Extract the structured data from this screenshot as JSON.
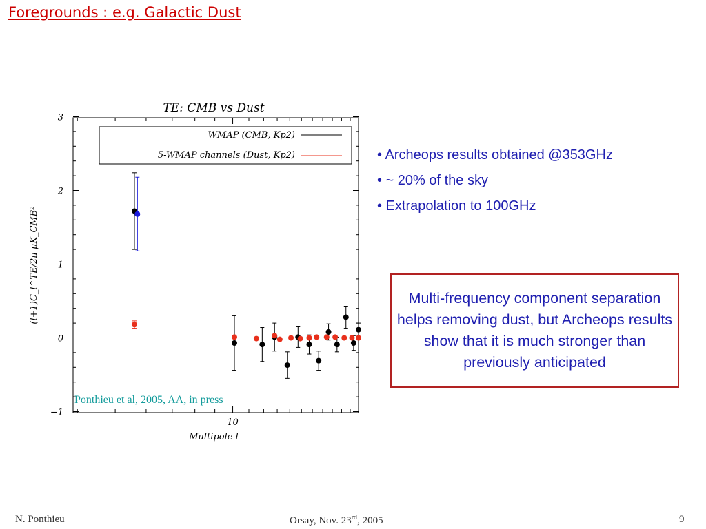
{
  "slide": {
    "title": "Foregrounds : e.g. Galactic Dust",
    "bullets": [
      "• Archeops results obtained @353GHz",
      "• ~ 20% of the sky",
      "• Extrapolation to 100GHz"
    ],
    "note": "Multi-frequency component separation helps removing dust, but Archeops results show that it is much stronger than previously anticipated",
    "citation": "Ponthieu et al, 2005, AA, in press",
    "footer": {
      "author": "N. Ponthieu",
      "venue_prefix": "Orsay, Nov. 23",
      "venue_sup": "rd",
      "venue_suffix": ", 2005",
      "page": "9"
    }
  },
  "chart_data": {
    "type": "scatter",
    "title": "TE: CMB vs Dust",
    "xlabel": "Multipole l",
    "ylabel": "(l+1)C_l^TE/2π  μK_CMB²",
    "xscale": "log",
    "xlim": [
      3.9,
      21
    ],
    "ylim": [
      -1,
      3
    ],
    "x_tick_labels": [
      "10"
    ],
    "x_ticks": [
      10
    ],
    "y_ticks": [
      -1,
      0,
      1,
      2,
      3
    ],
    "y_tick_labels": [
      "−1",
      "0",
      "1",
      "2",
      "3"
    ],
    "reference_line": {
      "y": 0,
      "style": "dashed"
    },
    "legend_position": "top",
    "series": [
      {
        "name": "WMAP (CMB, Kp2)",
        "color": "#000000",
        "points": [
          {
            "x": 5.6,
            "y": 1.72,
            "err": 0.52
          },
          {
            "x": 10.1,
            "y": -0.07,
            "err": 0.37
          },
          {
            "x": 11.9,
            "y": -0.09,
            "err": 0.23
          },
          {
            "x": 12.8,
            "y": 0.01,
            "err": 0.19
          },
          {
            "x": 13.8,
            "y": -0.37,
            "err": 0.18
          },
          {
            "x": 14.7,
            "y": 0.01,
            "err": 0.14
          },
          {
            "x": 15.7,
            "y": -0.09,
            "err": 0.13
          },
          {
            "x": 16.6,
            "y": -0.31,
            "err": 0.13
          },
          {
            "x": 17.6,
            "y": 0.08,
            "err": 0.11
          },
          {
            "x": 18.5,
            "y": -0.09,
            "err": 0.1
          },
          {
            "x": 19.5,
            "y": 0.28,
            "err": 0.15
          },
          {
            "x": 20.4,
            "y": -0.07,
            "err": 0.1
          },
          {
            "x": 21.0,
            "y": 0.11,
            "err": 0.09
          }
        ]
      },
      {
        "name": "5-WMAP channels (Dust, Kp2)",
        "color": "#e8301c",
        "points": [
          {
            "x": 5.6,
            "y": 0.18,
            "err": 0.05
          },
          {
            "x": 10.1,
            "y": 0.01,
            "err": 0.02
          },
          {
            "x": 11.5,
            "y": -0.01,
            "err": 0.02
          },
          {
            "x": 12.8,
            "y": 0.03,
            "err": 0.02
          },
          {
            "x": 13.2,
            "y": -0.02,
            "err": 0.02
          },
          {
            "x": 14.1,
            "y": 0.0,
            "err": 0.01
          },
          {
            "x": 14.9,
            "y": -0.01,
            "err": 0.02
          },
          {
            "x": 15.7,
            "y": 0.0,
            "err": 0.01
          },
          {
            "x": 16.4,
            "y": 0.01,
            "err": 0.01
          },
          {
            "x": 17.4,
            "y": 0.01,
            "err": 0.01
          },
          {
            "x": 18.3,
            "y": 0.01,
            "err": 0.01
          },
          {
            "x": 19.3,
            "y": 0.0,
            "err": 0.01
          },
          {
            "x": 20.2,
            "y": 0.0,
            "err": 0.01
          },
          {
            "x": 21.0,
            "y": 0.0,
            "err": 0.01
          }
        ]
      },
      {
        "name": "",
        "color": "#1a1adc",
        "points": [
          {
            "x": 5.7,
            "y": 1.68,
            "err": 0.5
          }
        ]
      }
    ]
  }
}
